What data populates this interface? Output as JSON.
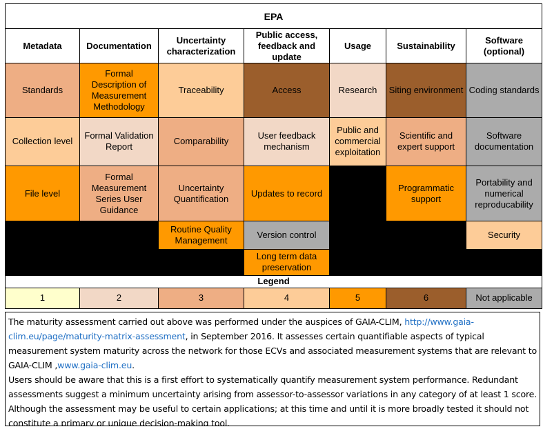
{
  "title": "EPA",
  "headers": [
    "Metadata",
    "Documentation",
    "Uncertainty characterization",
    "Public access, feedback and update",
    "Usage",
    "Sustainability",
    "Software (optional)"
  ],
  "cells": {
    "standards": "Standards",
    "formal_description": "Formal Description of Measurement Methodology",
    "traceability": "Traceability",
    "access": "Access",
    "research": "Research",
    "siting_environment": "Siting environment",
    "coding_standards": "Coding standards",
    "collection_level": "Collection level",
    "formal_validation": "Formal Validation Report",
    "comparability": "Comparability",
    "user_feedback": "User feedback mechanism",
    "public_commercial": "Public and commercial exploitation",
    "scientific_support": "Scientific and expert support",
    "software_documentation": "Software documentation",
    "file_level": "File level",
    "formal_guidance": "Formal Measurement Series User Guidance",
    "uncertainty_quantification": "Uncertainty Quantification",
    "updates_to_record": "Updates to record",
    "programmatic_support": "Programmatic support",
    "portability": "Portability and numerical reproducability",
    "routine_quality": "Routine Quality Management",
    "version_control": "Version control",
    "security": "Security",
    "long_term": "Long term data preservation"
  },
  "cell_scores": {
    "standards": 3,
    "formal_description": 5,
    "traceability": 4,
    "access": 6,
    "research": 2,
    "siting_environment": 6,
    "coding_standards": "NA",
    "collection_level": 4,
    "formal_validation": 2,
    "comparability": 3,
    "user_feedback": 2,
    "public_commercial": 4,
    "scientific_support": 3,
    "software_documentation": "NA",
    "file_level": 5,
    "formal_guidance": 3,
    "uncertainty_quantification": 3,
    "updates_to_record": 5,
    "programmatic_support": 5,
    "portability": "NA",
    "routine_quality": 5,
    "version_control": "NA",
    "security": 4,
    "long_term": 5
  },
  "legend": {
    "title": "Legend",
    "items": [
      "1",
      "2",
      "3",
      "4",
      "5",
      "6",
      "Not applicable"
    ]
  },
  "colors": {
    "1": "#ffffcc",
    "2": "#f2d8c6",
    "3": "#eeae84",
    "4": "#fdcc98",
    "5": "#ff9900",
    "6": "#9b5e2c",
    "not_applicable": "#ababab",
    "empty": "#000000",
    "link": "#1f6fc4"
  },
  "note": {
    "p1_a": "The  maturity assessment carried out above was performed under the auspices of GAIA-CLIM, ",
    "link1": "http://www.gaia-clim.eu/page/maturity-matrix-assessment",
    "p1_b": ", in September 2016. It assesses certain quantifiable aspects of typical measurement system maturity across the network for those ECVs and associated measurement systems that are relevant to GAIA-CLIM ,",
    "link2": "www.gaia-clim.eu",
    "p1_c": ".",
    "p2": "Users should be aware that this is a first effort to systematically quantify measurement system performance. Redundant assessments suggest a minimum uncertainty arising from assessor-to-assessor variations in any category of at least 1 score. Although the assessment may be useful to certain applications; at this time and until it is more broadly tested it should not constitute a primary or unique decision-making tool."
  }
}
